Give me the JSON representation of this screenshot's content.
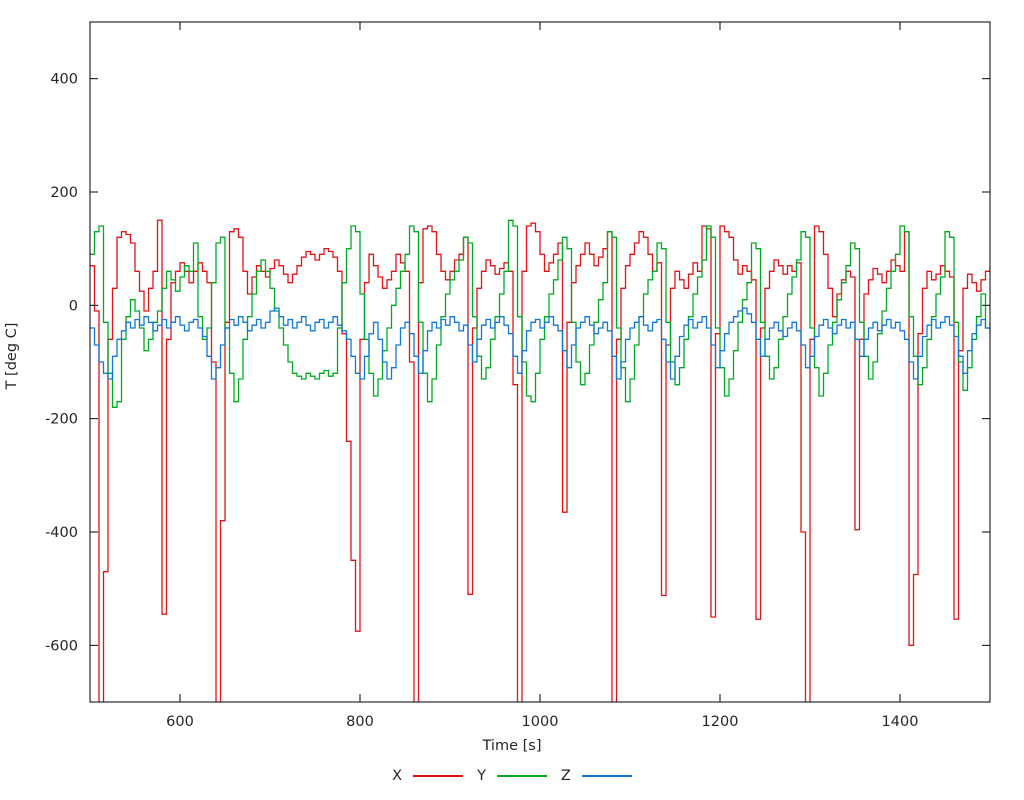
{
  "chart_data": {
    "type": "line",
    "interpolation": "step-after",
    "title": "",
    "xlabel": "Time [s]",
    "ylabel": "T [deg C]",
    "xlim": [
      500,
      1500
    ],
    "ylim": [
      -700,
      500
    ],
    "xticks": [
      600,
      800,
      1000,
      1200,
      1400
    ],
    "yticks": [
      -600,
      -400,
      -200,
      0,
      200,
      400
    ],
    "grid": false,
    "legend_position": "bottom-center",
    "axis_color": "#000000",
    "text_color": "#262626",
    "t_start": 500,
    "t_step": 5,
    "series": [
      {
        "name": "X",
        "color": "#e01414",
        "values": [
          70,
          -10,
          -720,
          -470,
          -60,
          30,
          120,
          130,
          125,
          110,
          60,
          25,
          -10,
          30,
          60,
          150,
          -545,
          -60,
          40,
          60,
          75,
          60,
          40,
          60,
          75,
          60,
          40,
          -100,
          -720,
          -380,
          -30,
          130,
          135,
          120,
          60,
          20,
          50,
          70,
          60,
          50,
          65,
          80,
          70,
          55,
          40,
          55,
          70,
          85,
          95,
          90,
          80,
          90,
          100,
          95,
          85,
          60,
          -50,
          -240,
          -450,
          -575,
          -60,
          40,
          90,
          70,
          50,
          30,
          45,
          60,
          90,
          75,
          60,
          -100,
          -720,
          40,
          135,
          140,
          130,
          90,
          60,
          45,
          60,
          80,
          90,
          120,
          -510,
          -40,
          30,
          60,
          80,
          70,
          55,
          65,
          75,
          60,
          -140,
          -720,
          60,
          140,
          145,
          130,
          90,
          60,
          75,
          90,
          110,
          -365,
          -30,
          40,
          70,
          90,
          110,
          90,
          70,
          85,
          100,
          130,
          -720,
          -60,
          30,
          70,
          90,
          110,
          130,
          120,
          90,
          60,
          75,
          -512,
          -70,
          30,
          60,
          45,
          30,
          55,
          75,
          60,
          140,
          135,
          -550,
          -50,
          140,
          130,
          120,
          80,
          55,
          70,
          60,
          45,
          -554,
          -40,
          30,
          60,
          80,
          70,
          55,
          70,
          60,
          75,
          -400,
          -720,
          -60,
          140,
          130,
          90,
          30,
          -20,
          20,
          45,
          60,
          50,
          -396,
          -60,
          20,
          45,
          65,
          55,
          40,
          60,
          80,
          70,
          60,
          130,
          -600,
          -475,
          -50,
          30,
          60,
          45,
          55,
          70,
          60,
          50,
          -554,
          -80,
          30,
          55,
          40,
          25,
          45,
          60,
          70
        ]
      },
      {
        "name": "Y",
        "color": "#00ab21",
        "values": [
          90,
          130,
          140,
          -30,
          -120,
          -180,
          -170,
          -60,
          -20,
          10,
          -10,
          -40,
          -80,
          -60,
          -30,
          -10,
          30,
          60,
          45,
          25,
          50,
          70,
          60,
          110,
          -20,
          -60,
          -40,
          40,
          110,
          120,
          -40,
          -120,
          -170,
          -130,
          -60,
          -20,
          20,
          60,
          80,
          60,
          30,
          -10,
          -40,
          -70,
          -100,
          -120,
          -125,
          -130,
          -120,
          -125,
          -130,
          -120,
          -115,
          -125,
          -120,
          -40,
          40,
          100,
          140,
          130,
          20,
          -60,
          -120,
          -160,
          -130,
          -80,
          -40,
          0,
          30,
          60,
          90,
          140,
          130,
          -30,
          -120,
          -170,
          -130,
          -70,
          -20,
          20,
          45,
          60,
          80,
          120,
          110,
          -20,
          -90,
          -130,
          -110,
          -60,
          -20,
          20,
          60,
          150,
          140,
          -20,
          -100,
          -160,
          -170,
          -120,
          -60,
          -20,
          20,
          45,
          80,
          120,
          100,
          -30,
          -100,
          -140,
          -120,
          -70,
          -30,
          10,
          40,
          130,
          120,
          -40,
          -110,
          -170,
          -130,
          -70,
          -20,
          20,
          45,
          60,
          110,
          100,
          -30,
          -100,
          -140,
          -110,
          -60,
          -20,
          20,
          50,
          80,
          140,
          120,
          -40,
          -110,
          -160,
          -130,
          -80,
          -30,
          10,
          40,
          110,
          100,
          -30,
          -90,
          -130,
          -110,
          -60,
          -20,
          20,
          50,
          80,
          130,
          120,
          -40,
          -110,
          -160,
          -120,
          -70,
          -30,
          10,
          40,
          70,
          110,
          100,
          -30,
          -90,
          -130,
          -100,
          -50,
          -10,
          30,
          60,
          90,
          140,
          130,
          -20,
          -90,
          -140,
          -110,
          -60,
          -20,
          20,
          50,
          130,
          120,
          -30,
          -100,
          -150,
          -110,
          -60,
          -20,
          20,
          -40,
          -50
        ]
      },
      {
        "name": "Z",
        "color": "#1179d4",
        "values": [
          -40,
          -70,
          -100,
          -120,
          -130,
          -90,
          -60,
          -45,
          -30,
          -40,
          -25,
          -35,
          -20,
          -30,
          -45,
          -35,
          -25,
          -40,
          -30,
          -20,
          -35,
          -45,
          -30,
          -25,
          -40,
          -55,
          -90,
          -130,
          -110,
          -70,
          -40,
          -25,
          -35,
          -20,
          -30,
          -45,
          -35,
          -25,
          -40,
          -30,
          -10,
          -5,
          -20,
          -35,
          -25,
          -40,
          -30,
          -20,
          -35,
          -45,
          -30,
          -25,
          -40,
          -30,
          -20,
          -35,
          -45,
          -60,
          -90,
          -120,
          -130,
          -90,
          -50,
          -30,
          -60,
          -100,
          -130,
          -110,
          -70,
          -40,
          -30,
          -50,
          -90,
          -120,
          -80,
          -45,
          -30,
          -40,
          -25,
          -35,
          -20,
          -30,
          -45,
          -35,
          -70,
          -100,
          -60,
          -35,
          -25,
          -40,
          -30,
          -20,
          -35,
          -50,
          -90,
          -120,
          -80,
          -45,
          -30,
          -25,
          -40,
          -30,
          -20,
          -35,
          -45,
          -80,
          -110,
          -70,
          -40,
          -30,
          -20,
          -35,
          -50,
          -40,
          -30,
          -45,
          -90,
          -130,
          -100,
          -60,
          -40,
          -30,
          -20,
          -35,
          -45,
          -30,
          -25,
          -60,
          -100,
          -130,
          -90,
          -55,
          -35,
          -25,
          -40,
          -30,
          -20,
          -40,
          -70,
          -110,
          -80,
          -50,
          -30,
          -20,
          -10,
          -5,
          -15,
          -30,
          -60,
          -90,
          -60,
          -40,
          -30,
          -45,
          -55,
          -40,
          -30,
          -45,
          -70,
          -110,
          -90,
          -55,
          -35,
          -25,
          -40,
          -50,
          -35,
          -25,
          -40,
          -30,
          -60,
          -90,
          -60,
          -40,
          -30,
          -45,
          -35,
          -25,
          -40,
          -30,
          -45,
          -60,
          -100,
          -130,
          -90,
          -55,
          -35,
          -25,
          -40,
          -30,
          -20,
          -35,
          -55,
          -90,
          -120,
          -80,
          -50,
          -35,
          -25,
          -40,
          -30
        ]
      }
    ]
  }
}
